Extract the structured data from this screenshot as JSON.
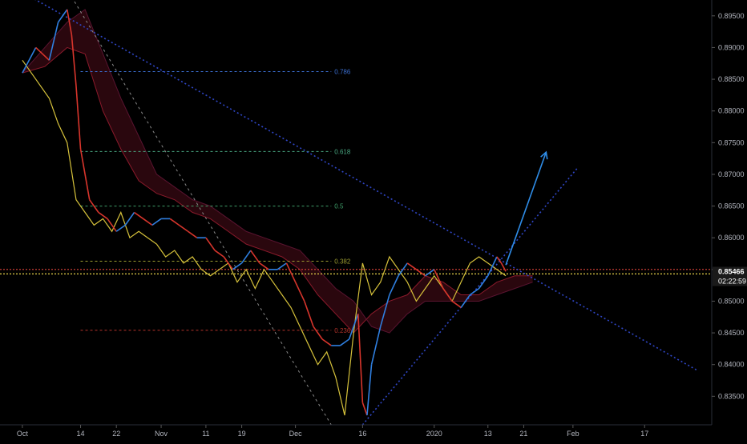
{
  "chart_data": {
    "type": "line",
    "title": "",
    "xlabel": "",
    "ylabel": "",
    "ylim": [
      0.8305,
      0.8975
    ],
    "y_ticks": [
      "0.89500",
      "0.89000",
      "0.88500",
      "0.88000",
      "0.87500",
      "0.87000",
      "0.86500",
      "0.86000",
      "0.85500",
      "0.85000",
      "0.84500",
      "0.84000",
      "0.83500"
    ],
    "y_tick_values": [
      0.895,
      0.89,
      0.885,
      0.88,
      0.875,
      0.87,
      0.865,
      0.86,
      0.855,
      0.85,
      0.845,
      0.84,
      0.835
    ],
    "x_tick_labels": [
      "Oct",
      "14",
      "22",
      "Nov",
      "11",
      "19",
      "Dec",
      "16",
      "2020",
      "13",
      "21",
      "Feb",
      "17"
    ],
    "x_tick_days": [
      0,
      13,
      21,
      31,
      41,
      49,
      61,
      76,
      92,
      104,
      112,
      123,
      139
    ],
    "x_range_days": [
      -5,
      154
    ],
    "last_price": {
      "label": "0.85466",
      "value": 0.85466,
      "countdown": "02:22:59"
    },
    "horizontal_levels": [
      0.855,
      0.8543
    ],
    "fib_levels": [
      {
        "label": "0.786",
        "value": 0.8862
      },
      {
        "label": "0.618",
        "value": 0.8736
      },
      {
        "label": "0.5",
        "value": 0.865
      },
      {
        "label": "0.382",
        "value": 0.8563
      },
      {
        "label": "0.236",
        "value": 0.8454
      }
    ],
    "trendlines": [
      {
        "name": "upper",
        "from": [
          -2,
          0.8995
        ],
        "to": [
          151,
          0.839
        ]
      },
      {
        "name": "lower",
        "from": [
          76,
          0.8305
        ],
        "to": [
          124,
          0.871
        ]
      },
      {
        "name": "fib-diagonal",
        "from": [
          11,
          0.898
        ],
        "to": [
          69,
          0.8305
        ]
      }
    ],
    "projection": {
      "from": [
        108,
        0.8557
      ],
      "to": [
        117,
        0.8735
      ]
    },
    "price": {
      "x": [
        0,
        3,
        6,
        8,
        10,
        11,
        12,
        13,
        14,
        15,
        17,
        19,
        21,
        23,
        25,
        27,
        29,
        31,
        33,
        35,
        37,
        39,
        41,
        43,
        45,
        47,
        49,
        51,
        53,
        55,
        57,
        59,
        61,
        63,
        65,
        67,
        69,
        71,
        73,
        75,
        76,
        77,
        78,
        80,
        82,
        84,
        86,
        88,
        90,
        92,
        94,
        96,
        98,
        100,
        102,
        104,
        106,
        107,
        108
      ],
      "y": [
        0.886,
        0.89,
        0.888,
        0.894,
        0.896,
        0.892,
        0.884,
        0.874,
        0.87,
        0.866,
        0.864,
        0.863,
        0.861,
        0.862,
        0.864,
        0.863,
        0.862,
        0.863,
        0.863,
        0.862,
        0.861,
        0.86,
        0.86,
        0.858,
        0.857,
        0.855,
        0.856,
        0.858,
        0.856,
        0.855,
        0.855,
        0.856,
        0.853,
        0.85,
        0.846,
        0.844,
        0.843,
        0.843,
        0.844,
        0.848,
        0.834,
        0.832,
        0.84,
        0.846,
        0.851,
        0.854,
        0.856,
        0.855,
        0.854,
        0.855,
        0.852,
        0.85,
        0.849,
        0.851,
        0.852,
        0.854,
        0.857,
        0.856,
        0.8547
      ]
    },
    "ichimoku": {
      "x": [
        0,
        5,
        10,
        14,
        18,
        22,
        26,
        30,
        34,
        38,
        42,
        46,
        50,
        54,
        58,
        62,
        66,
        70,
        74,
        78,
        82,
        86,
        90,
        94,
        98,
        102,
        106,
        110,
        114
      ],
      "span_a": [
        0.886,
        0.887,
        0.89,
        0.889,
        0.88,
        0.874,
        0.869,
        0.867,
        0.866,
        0.864,
        0.863,
        0.861,
        0.859,
        0.858,
        0.857,
        0.855,
        0.851,
        0.848,
        0.845,
        0.848,
        0.85,
        0.851,
        0.854,
        0.853,
        0.851,
        0.851,
        0.853,
        0.854,
        0.854
      ],
      "span_b": [
        0.886,
        0.89,
        0.894,
        0.896,
        0.889,
        0.882,
        0.876,
        0.87,
        0.868,
        0.866,
        0.865,
        0.863,
        0.861,
        0.86,
        0.859,
        0.858,
        0.855,
        0.852,
        0.85,
        0.846,
        0.845,
        0.848,
        0.85,
        0.85,
        0.85,
        0.85,
        0.851,
        0.852,
        0.853
      ]
    },
    "lagging": {
      "x": [
        0,
        3,
        6,
        8,
        10,
        12,
        14,
        16,
        18,
        20,
        22,
        24,
        26,
        28,
        30,
        32,
        34,
        36,
        38,
        40,
        42,
        44,
        46,
        48,
        50,
        52,
        54,
        56,
        58,
        60,
        62,
        64,
        66,
        68,
        70,
        72,
        74,
        76,
        78,
        80,
        82,
        84,
        86,
        88,
        90,
        92,
        94,
        96,
        98,
        100,
        102,
        104,
        106,
        108
      ],
      "y": [
        0.888,
        0.885,
        0.882,
        0.878,
        0.875,
        0.866,
        0.864,
        0.862,
        0.863,
        0.861,
        0.864,
        0.86,
        0.861,
        0.86,
        0.859,
        0.857,
        0.858,
        0.856,
        0.857,
        0.855,
        0.854,
        0.855,
        0.856,
        0.853,
        0.855,
        0.852,
        0.855,
        0.853,
        0.851,
        0.849,
        0.846,
        0.843,
        0.84,
        0.842,
        0.838,
        0.832,
        0.845,
        0.856,
        0.851,
        0.853,
        0.857,
        0.855,
        0.853,
        0.85,
        0.852,
        0.854,
        0.852,
        0.85,
        0.853,
        0.856,
        0.857,
        0.856,
        0.855,
        0.854
      ]
    }
  }
}
